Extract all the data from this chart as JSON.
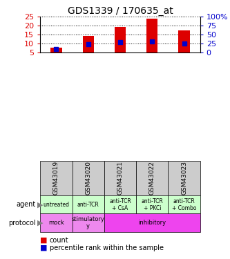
{
  "title": "GDS1339 / 170635_at",
  "samples": [
    "GSM43019",
    "GSM43020",
    "GSM43021",
    "GSM43022",
    "GSM43023"
  ],
  "counts": [
    8,
    14.5,
    19.2,
    24,
    17.5
  ],
  "percentile_ranks": [
    7.2,
    9.6,
    10.8,
    11.4,
    10.2
  ],
  "ylim_left": [
    5,
    25
  ],
  "ylim_right": [
    0,
    100
  ],
  "yticks_left": [
    5,
    10,
    15,
    20,
    25
  ],
  "yticks_right": [
    0,
    25,
    50,
    75,
    100
  ],
  "bar_color": "#dd0000",
  "pct_color": "#0000cc",
  "agent_labels": [
    "untreated",
    "anti-TCR",
    "anti-TCR\n+ CsA",
    "anti-TCR\n+ PKCi",
    "anti-TCR\n+ Combo"
  ],
  "agent_bg": "#ccffcc",
  "sample_bg": "#cccccc",
  "proto_spans": [
    {
      "label": "mock",
      "start": 0,
      "end": 0,
      "color": "#ee88ee"
    },
    {
      "label": "stimulatory\ny",
      "start": 1,
      "end": 1,
      "color": "#ee88ee"
    },
    {
      "label": "inhibitory",
      "start": 2,
      "end": 4,
      "color": "#ee44ee"
    }
  ],
  "legend_count_color": "#dd0000",
  "legend_pct_color": "#0000cc"
}
